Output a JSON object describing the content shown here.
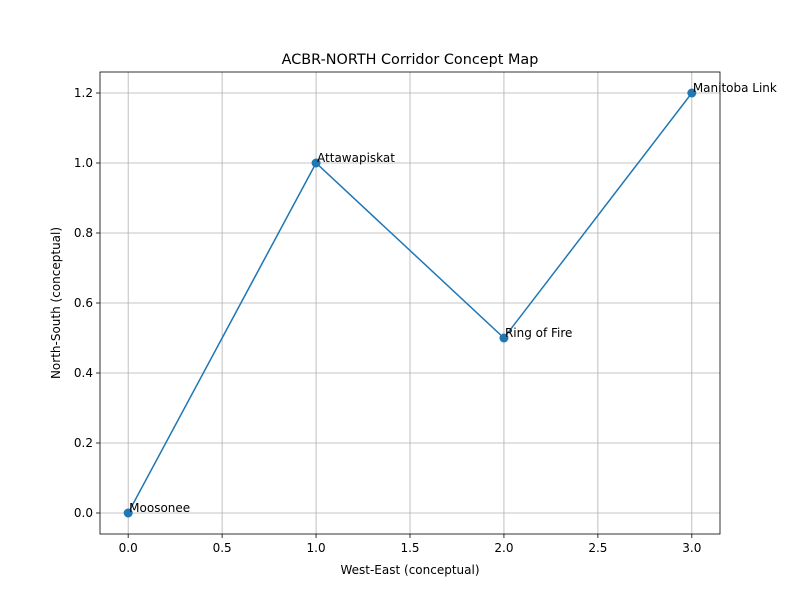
{
  "chart_data": {
    "type": "line",
    "title": "ACBR-NORTH Corridor Concept Map",
    "x_label": "West-East (conceptual)",
    "y_label": "North-South (conceptual)",
    "x": [
      0,
      1,
      2,
      3
    ],
    "values": [
      0,
      1,
      0.5,
      1.2
    ],
    "point_labels": [
      "Moosonee",
      "Attawapiskat",
      "Ring of Fire",
      "Manitoba Link"
    ],
    "color": "#1f77b4",
    "markers": true,
    "xlim": [
      -0.15,
      3.15
    ],
    "ylim": [
      -0.06,
      1.26
    ],
    "xticks": [
      {
        "value": 0,
        "label": "0.0"
      },
      {
        "value": 0.5,
        "label": "0.5"
      },
      {
        "value": 1,
        "label": "1.0"
      },
      {
        "value": 1.5,
        "label": "1.5"
      },
      {
        "value": 2,
        "label": "2.0"
      },
      {
        "value": 2.5,
        "label": "2.5"
      },
      {
        "value": 3,
        "label": "3.0"
      }
    ],
    "yticks": [
      {
        "value": 0,
        "label": "0.0"
      },
      {
        "value": 0.2,
        "label": "0.2"
      },
      {
        "value": 0.4,
        "label": "0.4"
      },
      {
        "value": 0.6,
        "label": "0.6"
      },
      {
        "value": 0.8,
        "label": "0.8"
      },
      {
        "value": 1,
        "label": "1.0"
      },
      {
        "value": 1.2,
        "label": "1.2"
      }
    ],
    "grid": true
  }
}
